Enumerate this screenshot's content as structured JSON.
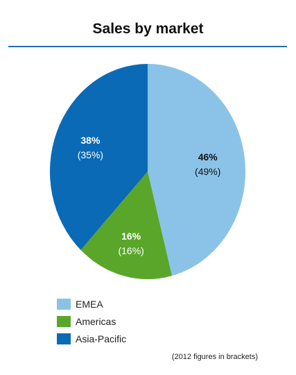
{
  "chart_data": {
    "type": "pie",
    "title": "Sales by market",
    "title_rule_color": "#1f6db5",
    "slices": [
      {
        "name": "EMEA",
        "value": 46,
        "label": "46%",
        "sublabel": "(49%)",
        "color": "#8bc3e8",
        "label_color": "#111111"
      },
      {
        "name": "Americas",
        "value": 16,
        "label": "16%",
        "sublabel": "(16%)",
        "color": "#5aa62b",
        "label_color": "#ffffff"
      },
      {
        "name": "Asia-Pacific",
        "value": 38,
        "label": "38%",
        "sublabel": "(35%)",
        "color": "#0a6ab5",
        "label_color": "#ffffff"
      }
    ],
    "start": "12 o'clock",
    "direction": "clockwise",
    "legend_position": "bottom-left",
    "annotation": "(2012 figures in brackets)"
  }
}
